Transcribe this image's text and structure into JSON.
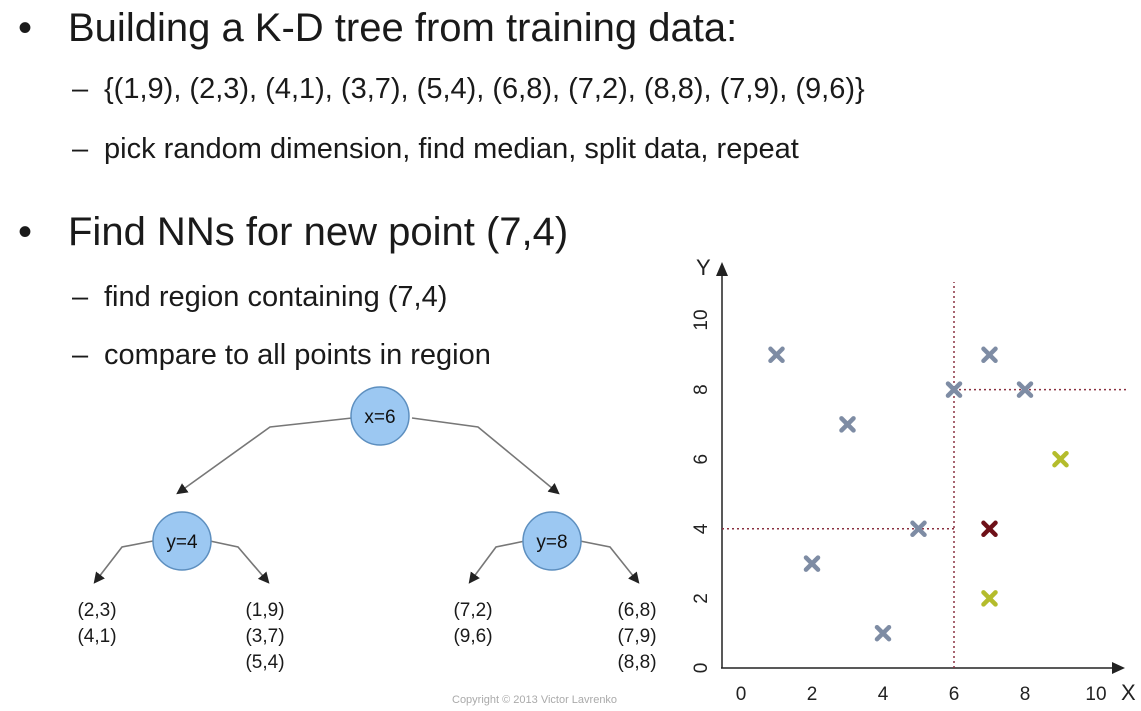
{
  "slide": {
    "bullet1": {
      "marker": "•",
      "text": "Building a K-D tree from training data:"
    },
    "sub1": {
      "marker": "–",
      "text": "{(1,9), (2,3), (4,1), (3,7), (5,4), (6,8), (7,2), (8,8), (7,9), (9,6)}"
    },
    "sub2": {
      "marker": "–",
      "text": "pick random dimension, find median, split data, repeat"
    },
    "bullet2": {
      "marker": "•",
      "text": "Find NNs for new point (7,4)"
    },
    "sub3": {
      "marker": "–",
      "text": "find region containing (7,4)"
    },
    "sub4": {
      "marker": "–",
      "text": "compare to all points in region"
    },
    "copyright": "Copyright © 2013 Victor Lavrenko"
  },
  "tree": {
    "root": "x=6",
    "left": "y=4",
    "right": "y=8",
    "leaves": [
      [
        "(2,3)",
        "(4,1)"
      ],
      [
        "(1,9)",
        "(3,7)",
        "(5,4)"
      ],
      [
        "(7,2)",
        "(9,6)"
      ],
      [
        "(6,8)",
        "(7,9)",
        "(8,8)"
      ]
    ],
    "node_color": "#9cc8f2"
  },
  "chart_data": {
    "type": "scatter",
    "xlabel": "X",
    "ylabel": "Y",
    "xlim": [
      0,
      10
    ],
    "ylim": [
      0,
      10
    ],
    "xticks": [
      0,
      2,
      4,
      6,
      8,
      10
    ],
    "yticks": [
      0,
      2,
      4,
      6,
      8,
      10
    ],
    "training_points": [
      [
        1,
        9
      ],
      [
        2,
        3
      ],
      [
        4,
        1
      ],
      [
        3,
        7
      ],
      [
        5,
        4
      ],
      [
        6,
        8
      ],
      [
        7,
        2
      ],
      [
        8,
        8
      ],
      [
        7,
        9
      ],
      [
        9,
        6
      ]
    ],
    "highlighted_points": [
      [
        7,
        2
      ],
      [
        9,
        6
      ]
    ],
    "query_point": [
      7,
      4
    ],
    "splits": [
      {
        "axis": "x",
        "value": 6
      },
      {
        "axis": "y",
        "value": 4,
        "range": [
          0,
          6
        ]
      },
      {
        "axis": "y",
        "value": 8,
        "range": [
          6,
          10
        ]
      }
    ],
    "colors": {
      "point": "#7e8ca4",
      "highlight": "#b4bc2c",
      "query": "#6e1018",
      "split": "#8a3040"
    }
  }
}
